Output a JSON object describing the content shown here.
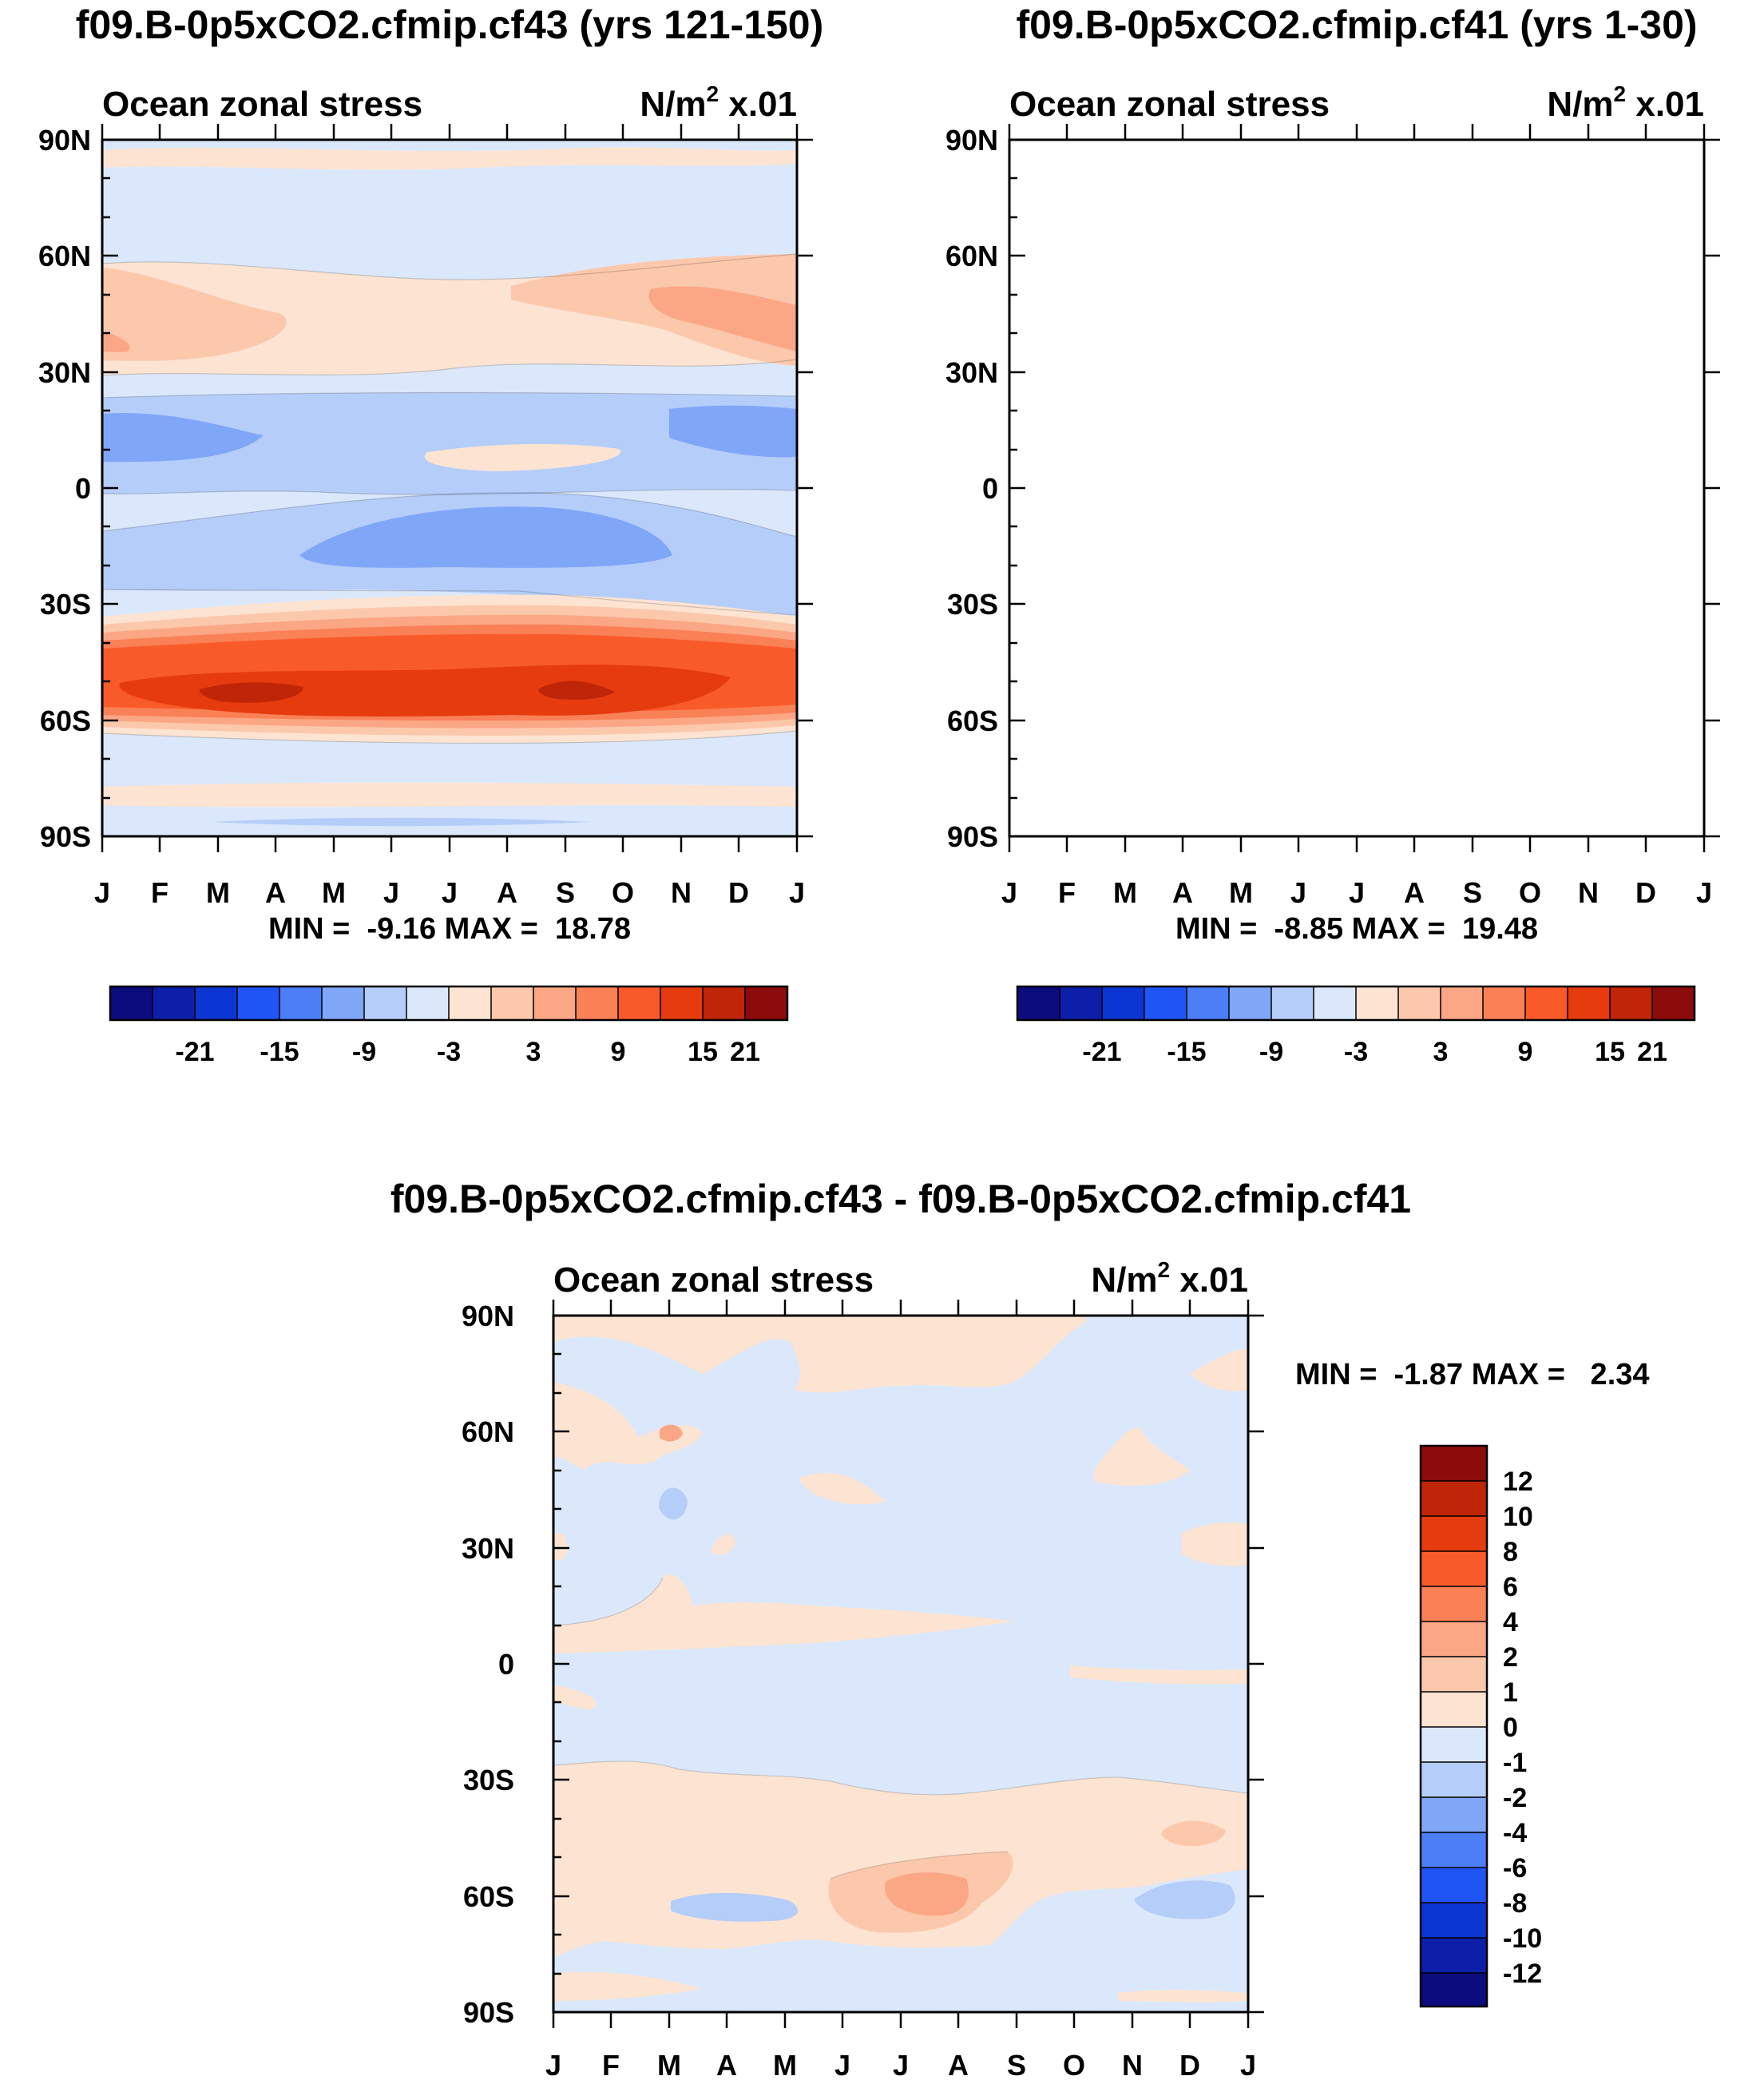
{
  "palette": {
    "blues": [
      "#0c0c7e",
      "#0d1ea8",
      "#0b36d2",
      "#1f55f5",
      "#4b7ef7",
      "#80a6f8",
      "#b5cdf9",
      "#dbe8fb"
    ],
    "reds": [
      "#fde4d2",
      "#fcc8ac",
      "#fba684",
      "#fa8056",
      "#f95a29",
      "#e53b0f",
      "#c02507",
      "#8c0b0b"
    ],
    "outline": "#000000"
  },
  "chart_data": [
    {
      "type": "heatmap",
      "title": "f09.B-0p5xCO2.cfmip.cf43 (yrs 121-150)",
      "subtitle_left": "Ocean zonal stress",
      "units": {
        "base": "N/m",
        "sup": "2",
        "suffix": " x.01"
      },
      "xticks": [
        "J",
        "F",
        "M",
        "A",
        "M",
        "J",
        "J",
        "A",
        "S",
        "O",
        "N",
        "D",
        "J"
      ],
      "yticks": [
        "90N",
        "60N",
        "30N",
        "0",
        "30S",
        "60S",
        "90S"
      ],
      "stats": "MIN =  -9.16 MAX =  18.78",
      "colorbar_labels": [
        "-21",
        "-15",
        "-9",
        "-3",
        "3",
        "9",
        "15",
        "21"
      ],
      "levels": [
        -21,
        -18,
        -15,
        -12,
        -9,
        -6,
        -3,
        0,
        3,
        6,
        9,
        12,
        15,
        18,
        21
      ]
    },
    {
      "type": "heatmap",
      "title": "f09.B-0p5xCO2.cfmip.cf41 (yrs 1-30)",
      "subtitle_left": "Ocean zonal stress",
      "units": {
        "base": "N/m",
        "sup": "2",
        "suffix": " x.01"
      },
      "xticks": [
        "J",
        "F",
        "M",
        "A",
        "M",
        "J",
        "J",
        "A",
        "S",
        "O",
        "N",
        "D",
        "J"
      ],
      "yticks": [
        "90N",
        "60N",
        "30N",
        "0",
        "30S",
        "60S",
        "90S"
      ],
      "stats": "MIN =  -8.85 MAX =  19.48",
      "colorbar_labels": [
        "-21",
        "-15",
        "-9",
        "-3",
        "3",
        "9",
        "15",
        "21"
      ],
      "levels": [
        -21,
        -18,
        -15,
        -12,
        -9,
        -6,
        -3,
        0,
        3,
        6,
        9,
        12,
        15,
        18,
        21
      ]
    },
    {
      "type": "heatmap",
      "title": "f09.B-0p5xCO2.cfmip.cf43 - f09.B-0p5xCO2.cfmip.cf41",
      "subtitle_left": "Ocean zonal stress",
      "units": {
        "base": "N/m",
        "sup": "2",
        "suffix": " x.01"
      },
      "xticks": [
        "J",
        "F",
        "M",
        "A",
        "M",
        "J",
        "J",
        "A",
        "S",
        "O",
        "N",
        "D",
        "J"
      ],
      "yticks": [
        "90N",
        "60N",
        "30N",
        "0",
        "30S",
        "60S",
        "90S"
      ],
      "stats": "MIN =  -1.87 MAX =   2.34",
      "colorbar_labels": [
        "12",
        "10",
        "8",
        "6",
        "4",
        "2",
        "1",
        "0",
        "-1",
        "-2",
        "-4",
        "-6",
        "-8",
        "-10",
        "-12"
      ],
      "levels": [
        12,
        10,
        8,
        6,
        4,
        2,
        1,
        0,
        -1,
        -2,
        -4,
        -6,
        -8,
        -10,
        -12
      ]
    }
  ]
}
